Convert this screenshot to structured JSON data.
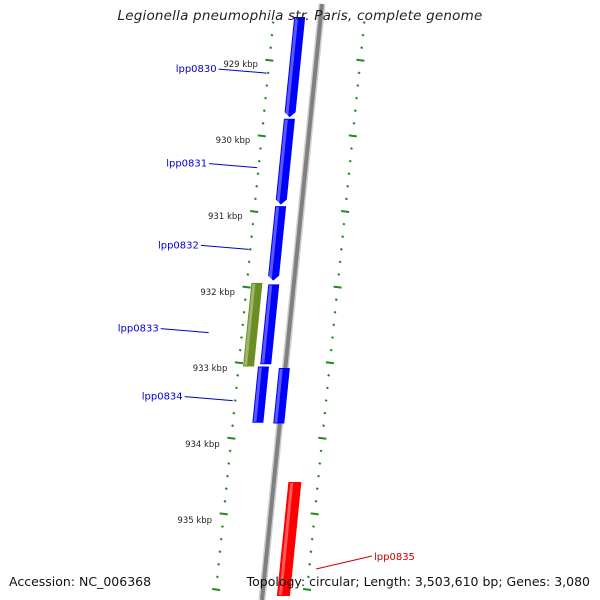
{
  "title": "Legionella pneumophila str. Paris, complete genome",
  "footer": {
    "accession": "Accession: NC_006368",
    "topology": "Topology: circular; Length: 3,503,610 bp; Genes: 3,080"
  },
  "colors": {
    "gene_forward": "#0000ff",
    "gene_reverse": "#ff0000",
    "gene_other": "#6b8e23",
    "label_forward": "#0000cc",
    "label_reverse": "#cc0000",
    "ticks": "#228b22",
    "backbone": "#808080"
  },
  "scale": {
    "labels": [
      {
        "kbp": 929,
        "text": "929 kbp"
      },
      {
        "kbp": 930,
        "text": "930 kbp"
      },
      {
        "kbp": 931,
        "text": "931 kbp"
      },
      {
        "kbp": 932,
        "text": "932 kbp"
      },
      {
        "kbp": 933,
        "text": "933 kbp"
      },
      {
        "kbp": 934,
        "text": "934 kbp"
      },
      {
        "kbp": 935,
        "text": "935 kbp"
      }
    ]
  },
  "genes": [
    {
      "name": "lpp0830",
      "label": "lpp0830",
      "strand": "+",
      "start_kbp": 928.3,
      "end_kbp": 929.7
    },
    {
      "name": "lpp0831",
      "label": "lpp0831",
      "strand": "+",
      "start_kbp": 929.72,
      "end_kbp": 930.85
    },
    {
      "name": "lpp0832",
      "label": "lpp0832",
      "strand": "+",
      "start_kbp": 930.87,
      "end_kbp": 931.85
    },
    {
      "name": "lpp0833",
      "label": "lpp0833",
      "strand": "other",
      "start_kbp": 931.88,
      "end_kbp": 932.98
    },
    {
      "name": "lpp0833b",
      "label": "",
      "strand": "+",
      "start_kbp": 931.9,
      "end_kbp": 932.95
    },
    {
      "name": "lpp0834",
      "label": "lpp0834",
      "strand": "+",
      "start_kbp": 932.98,
      "end_kbp": 933.72
    },
    {
      "name": "lpp0834b",
      "label": "",
      "strand": "+",
      "start_kbp": 933.0,
      "end_kbp": 933.73
    },
    {
      "name": "lpp0835",
      "label": "lpp0835",
      "strand": "-",
      "start_kbp": 934.5,
      "end_kbp": 936.0
    }
  ]
}
